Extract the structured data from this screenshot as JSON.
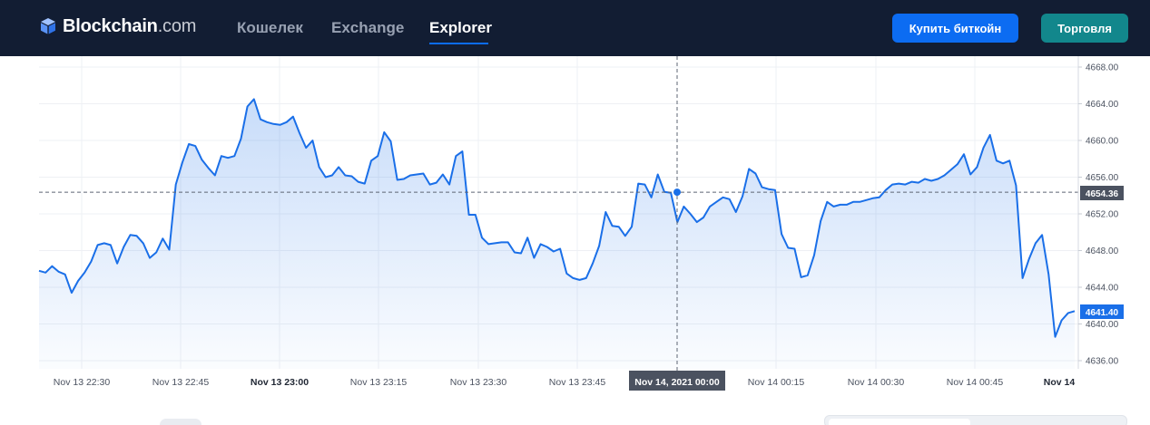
{
  "header": {
    "logo_main": "Blockchain",
    "logo_suffix": ".com",
    "nav": [
      {
        "label": "Кошелек"
      },
      {
        "label": "Exchange"
      },
      {
        "label": "Explorer"
      }
    ],
    "buy_label": "Купить биткойн",
    "trade_label": "Торговля"
  },
  "colors": {
    "header_bg": "#121d33",
    "accent": "#0c6cf2",
    "trade": "#12878c",
    "line": "#1a6fe8"
  },
  "chart_data": {
    "type": "area",
    "ylim": [
      4635,
      4669
    ],
    "y_ticks": [
      "4668.00",
      "4664.00",
      "4660.00",
      "4656.00",
      "4652.00",
      "4648.00",
      "4644.00",
      "4640.00",
      "4636.00"
    ],
    "x_labels": [
      "Nov 13 22:30",
      "Nov 13 22:45",
      "Nov 13 23:00",
      "Nov 13 23:15",
      "Nov 13 23:30",
      "Nov 13 23:45",
      "Nov 14, 2021 00:00",
      "Nov 14 00:15",
      "Nov 14 00:30",
      "Nov 14 00:45",
      "Nov 14"
    ],
    "crosshair_value": "4654.36",
    "last_value": "4641.40",
    "grid": true,
    "series": [
      {
        "values": [
          4645.8,
          4645.6,
          4646.3,
          4645.7,
          4645.4,
          4643.4,
          4644.7,
          4645.6,
          4646.8,
          4648.6,
          4648.8,
          4648.6,
          4646.6,
          4648.4,
          4649.7,
          4649.6,
          4648.8,
          4647.2,
          4647.8,
          4649.3,
          4648.1,
          4655.2,
          4657.6,
          4659.6,
          4659.4,
          4657.9,
          4657.0,
          4656.2,
          4658.3,
          4658.1,
          4658.3,
          4660.2,
          4663.7,
          4664.5,
          4662.3,
          4662.0,
          4661.8,
          4661.7,
          4662.0,
          4662.6,
          4660.8,
          4659.2,
          4660.0,
          4657.1,
          4656.0,
          4656.2,
          4657.1,
          4656.2,
          4656.1,
          4655.5,
          4655.3,
          4657.8,
          4658.3,
          4660.9,
          4659.9,
          4655.7,
          4655.8,
          4656.2,
          4656.3,
          4656.4,
          4655.2,
          4655.4,
          4656.3,
          4655.2,
          4658.3,
          4658.8,
          4651.9,
          4651.9,
          4649.4,
          4648.7,
          4648.8,
          4648.9,
          4648.9,
          4647.8,
          4647.7,
          4649.4,
          4647.2,
          4648.7,
          4648.4,
          4647.9,
          4648.2,
          4645.5,
          4645.0,
          4644.8,
          4645.0,
          4646.6,
          4648.5,
          4652.2,
          4650.7,
          4650.6,
          4649.6,
          4650.6,
          4655.3,
          4655.2,
          4653.8,
          4656.3,
          4654.4,
          4654.3,
          4651.1,
          4652.8,
          4652.0,
          4651.1,
          4651.6,
          4652.8,
          4653.3,
          4653.8,
          4653.6,
          4652.2,
          4653.9,
          4656.9,
          4656.4,
          4654.9,
          4654.7,
          4654.6,
          4649.8,
          4648.3,
          4648.2,
          4645.1,
          4645.3,
          4647.5,
          4651.2,
          4653.3,
          4652.8,
          4653.0,
          4653.0,
          4653.3,
          4653.3,
          4653.5,
          4653.7,
          4653.8,
          4654.6,
          4655.2,
          4655.3,
          4655.2,
          4655.5,
          4655.4,
          4655.8,
          4655.6,
          4655.8,
          4656.2,
          4656.8,
          4657.4,
          4658.5,
          4656.3,
          4657.1,
          4659.2,
          4660.6,
          4657.8,
          4657.5,
          4657.8,
          4655.1,
          4645.0,
          4647.1,
          4648.8,
          4649.7,
          4645.4,
          4638.6,
          4640.4,
          4641.2,
          4641.4
        ]
      }
    ]
  }
}
